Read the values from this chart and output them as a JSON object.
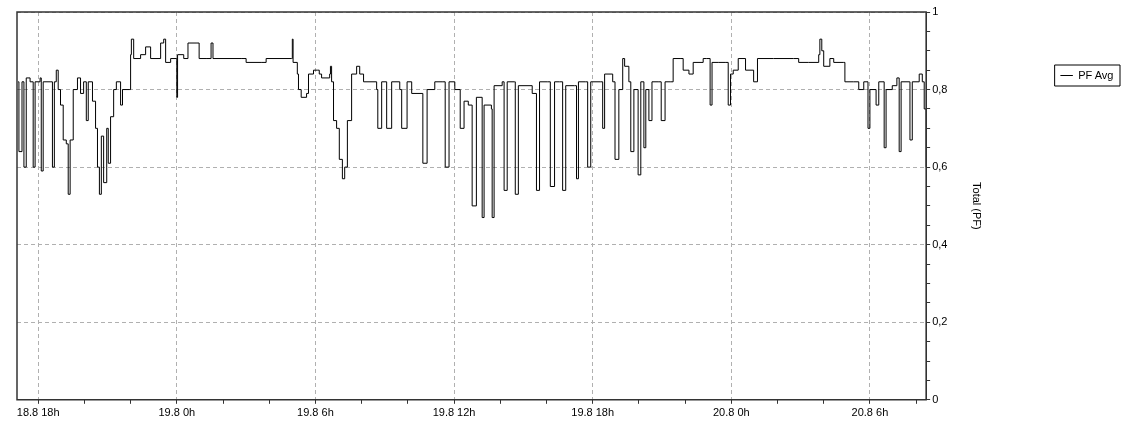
{
  "chart_data": {
    "type": "step",
    "ylabel": "Total (PF)",
    "xlim": [
      "--08-18T17:05",
      "--08-20T08:26"
    ],
    "xticks": [
      {
        "value": "--08-18T18:00",
        "label": "18.8 18h"
      },
      {
        "value": "--08-18T20:00",
        "label": null
      },
      {
        "value": "--08-18T22:00",
        "label": null
      },
      {
        "value": "--08-19T00:00",
        "label": "19.8 0h"
      },
      {
        "value": "--08-19T02:00",
        "label": null
      },
      {
        "value": "--08-19T04:00",
        "label": null
      },
      {
        "value": "--08-19T06:00",
        "label": "19.8 6h"
      },
      {
        "value": "--08-19T08:00",
        "label": null
      },
      {
        "value": "--08-19T10:00",
        "label": null
      },
      {
        "value": "--08-19T12:00",
        "label": "19.8 12h"
      },
      {
        "value": "--08-19T14:00",
        "label": null
      },
      {
        "value": "--08-19T16:00",
        "label": null
      },
      {
        "value": "--08-19T18:00",
        "label": "19.8 18h"
      },
      {
        "value": "--08-19T20:00",
        "label": null
      },
      {
        "value": "--08-19T22:00",
        "label": null
      },
      {
        "value": "--08-20T00:00",
        "label": "20.8 0h"
      },
      {
        "value": "--08-20T02:00",
        "label": null
      },
      {
        "value": "--08-20T04:00",
        "label": null
      },
      {
        "value": "--08-20T06:00",
        "label": "20.8 6h"
      },
      {
        "value": "--08-20T08:00",
        "label": null
      }
    ],
    "ylim": [
      0,
      1
    ],
    "yticks": [
      0,
      {
        "value": 0.05,
        "label": null
      },
      {
        "value": 0.1,
        "label": null
      },
      {
        "value": 0.15,
        "label": null
      },
      {
        "value": 0.2,
        "label": "0,2"
      },
      {
        "value": 0.25,
        "label": null
      },
      {
        "value": 0.3,
        "label": null
      },
      {
        "value": 0.35,
        "label": null
      },
      {
        "value": 0.4,
        "label": "0,4"
      },
      {
        "value": 0.45,
        "label": null
      },
      {
        "value": 0.5,
        "label": null
      },
      {
        "value": 0.55,
        "label": null
      },
      {
        "value": 0.6,
        "label": "0,6"
      },
      {
        "value": 0.65,
        "label": null
      },
      {
        "value": 0.7,
        "label": null
      },
      {
        "value": 0.75,
        "label": null
      },
      {
        "value": 0.8,
        "label": "0,8"
      },
      {
        "value": 0.85,
        "label": null
      },
      {
        "value": 0.9,
        "label": null
      },
      {
        "value": 0.95,
        "label": null
      },
      1
    ],
    "grid": true,
    "legend": "top right",
    "marker": "none",
    "line_style": "solid",
    "series": [
      {
        "name": "PF Avg",
        "color": "#000000",
        "x": [
          "--08-18T17:08",
          "--08-18T17:10",
          "--08-18T17:18",
          "--08-18T17:23",
          "--08-18T17:29",
          "--08-18T17:39",
          "--08-18T17:47",
          "--08-18T17:52",
          "--08-18T18:05",
          "--08-18T18:08",
          "--08-18T18:13",
          "--08-18T18:31",
          "--08-18T18:37",
          "--08-18T18:42",
          "--08-18T18:47",
          "--08-18T18:52",
          "--08-18T18:58",
          "--08-18T19:05",
          "--08-18T19:13",
          "--08-18T19:18",
          "--08-18T19:23",
          "--08-18T19:31",
          "--08-18T19:42",
          "--08-18T19:50",
          "--08-18T19:58",
          "--08-18T20:05",
          "--08-18T20:10",
          "--08-18T20:21",
          "--08-18T20:29",
          "--08-18T20:34",
          "--08-18T20:39",
          "--08-18T20:44",
          "--08-18T20:50",
          "--08-18T20:58",
          "--08-18T21:02",
          "--08-18T21:08",
          "--08-18T21:16",
          "--08-18T21:23",
          "--08-18T21:34",
          "--08-18T21:39",
          "--08-18T21:58",
          "--08-18T22:00",
          "--08-18T22:02",
          "--08-18T22:08",
          "--08-18T22:26",
          "--08-18T22:39",
          "--08-18T22:52",
          "--08-18T23:18",
          "--08-18T23:26",
          "--08-18T23:31",
          "--08-18T23:44",
          "--08-18T23:58",
          "--08-19T00:00",
          "--08-19T00:02",
          "--08-19T00:18",
          "--08-19T00:29",
          "--08-19T00:50",
          "--08-19T00:58",
          "--08-19T01:16",
          "--08-19T01:29",
          "--08-19T01:34",
          "--08-19T02:47",
          "--08-19T03:00",
          "--08-19T03:39",
          "--08-19T03:52",
          "--08-19T04:58",
          "--08-19T05:00",
          "--08-19T05:02",
          "--08-19T05:13",
          "--08-19T05:16",
          "--08-19T05:23",
          "--08-19T05:37",
          "--08-19T05:42",
          "--08-19T05:55",
          "--08-19T06:05",
          "--08-19T06:10",
          "--08-19T06:16",
          "--08-19T06:37",
          "--08-19T06:39",
          "--08-19T06:42",
          "--08-19T06:47",
          "--08-19T06:55",
          "--08-19T07:02",
          "--08-19T07:10",
          "--08-19T07:16",
          "--08-19T07:23",
          "--08-19T07:34",
          "--08-19T07:47",
          "--08-19T07:55",
          "--08-19T08:05",
          "--08-19T08:39",
          "--08-19T08:42",
          "--08-19T08:52",
          "--08-19T09:05",
          "--08-19T09:18",
          "--08-19T09:39",
          "--08-19T09:44",
          "--08-19T09:58",
          "--08-19T10:10",
          "--08-19T10:39",
          "--08-19T10:50",
          "--08-19T11:10",
          "--08-19T11:29",
          "--08-19T11:37",
          "--08-19T11:47",
          "--08-19T12:02",
          "--08-19T12:16",
          "--08-19T12:26",
          "--08-19T12:37",
          "--08-19T12:47",
          "--08-19T12:58",
          "--08-19T13:13",
          "--08-19T13:18",
          "--08-19T13:37",
          "--08-19T13:39",
          "--08-19T13:44",
          "--08-19T14:05",
          "--08-19T14:10",
          "--08-19T14:18",
          "--08-19T14:37",
          "--08-19T14:39",
          "--08-19T14:47",
          "--08-19T15:23",
          "--08-19T15:34",
          "--08-19T15:42",
          "--08-19T16:02",
          "--08-19T16:10",
          "--08-19T16:21",
          "--08-19T16:34",
          "--08-19T16:42",
          "--08-19T16:50",
          "--08-19T17:13",
          "--08-19T17:18",
          "--08-19T17:23",
          "--08-19T17:42",
          "--08-19T17:47",
          "--08-19T17:55",
          "--08-19T18:21",
          "--08-19T18:26",
          "--08-19T18:31",
          "--08-19T18:52",
          "--08-19T18:58",
          "--08-19T19:08",
          "--08-19T19:18",
          "--08-19T19:23",
          "--08-19T19:34",
          "--08-19T19:39",
          "--08-19T19:47",
          "--08-19T19:58",
          "--08-19T20:05",
          "--08-19T20:13",
          "--08-19T20:18",
          "--08-19T20:26",
          "--08-19T20:34",
          "--08-19T20:50",
          "--08-19T20:58",
          "--08-19T21:08",
          "--08-19T21:23",
          "--08-19T21:29",
          "--08-19T21:47",
          "--08-19T21:55",
          "--08-19T22:10",
          "--08-19T22:21",
          "--08-19T22:47",
          "--08-19T22:55",
          "--08-19T23:05",
          "--08-19T23:10",
          "--08-19T23:26",
          "--08-19T23:44",
          "--08-19T23:52",
          "--08-19T23:58",
          "--08-20T00:05",
          "--08-20T00:18",
          "--08-20T00:37",
          "--08-20T00:58",
          "--08-20T01:08",
          "--08-20T01:50",
          "--08-20T02:42",
          "--08-20T02:55",
          "--08-20T03:21",
          "--08-20T03:47",
          "--08-20T03:50",
          "--08-20T03:55",
          "--08-20T04:00",
          "--08-20T04:16",
          "--08-20T04:26",
          "--08-20T04:52",
          "--08-20T04:55",
          "--08-20T05:18",
          "--08-20T05:31",
          "--08-20T05:44",
          "--08-20T05:55",
          "--08-20T06:00",
          "--08-20T06:16",
          "--08-20T06:23",
          "--08-20T06:37",
          "--08-20T06:42",
          "--08-20T06:58",
          "--08-20T07:10",
          "--08-20T07:16",
          "--08-20T07:21",
          "--08-20T07:42",
          "--08-20T07:44",
          "--08-20T07:50",
          "--08-20T08:08",
          "--08-20T08:16",
          "--08-20T08:21",
          "--08-20T08:26"
        ],
        "values": [
          0.82,
          0.64,
          0.82,
          0.6,
          0.83,
          0.82,
          0.6,
          0.82,
          0.83,
          0.59,
          0.82,
          0.82,
          0.6,
          0.82,
          0.85,
          0.8,
          0.76,
          0.67,
          0.66,
          0.53,
          0.67,
          0.8,
          0.83,
          0.79,
          0.82,
          0.72,
          0.82,
          0.77,
          0.7,
          0.6,
          0.53,
          0.68,
          0.56,
          0.7,
          0.61,
          0.73,
          0.8,
          0.82,
          0.76,
          0.8,
          0.8,
          0.89,
          0.93,
          0.88,
          0.89,
          0.91,
          0.88,
          0.92,
          0.93,
          0.87,
          0.88,
          0.88,
          0.78,
          0.89,
          0.88,
          0.92,
          0.92,
          0.88,
          0.88,
          0.92,
          0.88,
          0.88,
          0.87,
          0.87,
          0.88,
          0.88,
          0.93,
          0.87,
          0.84,
          0.8,
          0.78,
          0.79,
          0.84,
          0.85,
          0.85,
          0.84,
          0.83,
          0.84,
          0.86,
          0.82,
          0.72,
          0.7,
          0.62,
          0.57,
          0.6,
          0.72,
          0.84,
          0.86,
          0.84,
          0.82,
          0.8,
          0.7,
          0.82,
          0.7,
          0.82,
          0.8,
          0.7,
          0.82,
          0.79,
          0.61,
          0.8,
          0.82,
          0.82,
          0.6,
          0.82,
          0.8,
          0.7,
          0.77,
          0.76,
          0.5,
          0.78,
          0.47,
          0.76,
          0.75,
          0.47,
          0.81,
          0.82,
          0.54,
          0.82,
          0.82,
          0.53,
          0.81,
          0.79,
          0.54,
          0.82,
          0.82,
          0.55,
          0.82,
          0.82,
          0.54,
          0.81,
          0.81,
          0.57,
          0.82,
          0.82,
          0.6,
          0.82,
          0.82,
          0.7,
          0.84,
          0.82,
          0.62,
          0.8,
          0.88,
          0.86,
          0.82,
          0.64,
          0.8,
          0.58,
          0.82,
          0.65,
          0.8,
          0.72,
          0.82,
          0.82,
          0.72,
          0.82,
          0.82,
          0.88,
          0.88,
          0.85,
          0.84,
          0.87,
          0.88,
          0.88,
          0.76,
          0.87,
          0.87,
          0.87,
          0.76,
          0.84,
          0.85,
          0.88,
          0.85,
          0.82,
          0.88,
          0.88,
          0.88,
          0.87,
          0.87,
          0.89,
          0.93,
          0.9,
          0.86,
          0.88,
          0.87,
          0.87,
          0.82,
          0.82,
          0.8,
          0.82,
          0.7,
          0.8,
          0.76,
          0.82,
          0.65,
          0.8,
          0.81,
          0.83,
          0.64,
          0.82,
          0.82,
          0.67,
          0.82,
          0.84,
          0.82,
          0.75,
          0.6
        ]
      }
    ]
  }
}
